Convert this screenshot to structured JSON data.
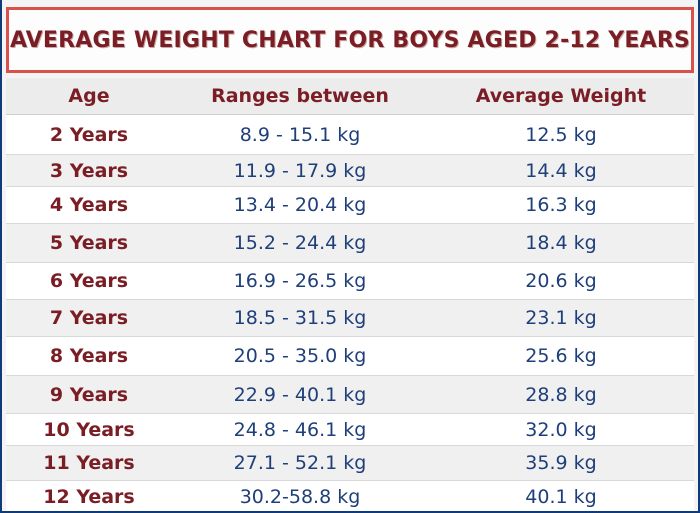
{
  "title": "AVERAGE WEIGHT CHART FOR BOYS AGED 2-12 YEARS",
  "table": {
    "headers": {
      "age": "Age",
      "range": "Ranges between",
      "average": "Average Weight"
    },
    "rows": [
      {
        "age": "2 Years",
        "range": "8.9 - 15.1 kg",
        "average": "12.5 kg"
      },
      {
        "age": "3 Years",
        "range": "11.9 - 17.9 kg",
        "average": "14.4 kg"
      },
      {
        "age": "4 Years",
        "range": "13.4 - 20.4 kg",
        "average": "16.3 kg"
      },
      {
        "age": "5 Years",
        "range": "15.2 - 24.4 kg",
        "average": "18.4 kg"
      },
      {
        "age": "6 Years",
        "range": "16.9 - 26.5 kg",
        "average": "20.6 kg"
      },
      {
        "age": "7 Years",
        "range": "18.5 - 31.5 kg",
        "average": "23.1 kg"
      },
      {
        "age": "8 Years",
        "range": "20.5 - 35.0 kg",
        "average": "25.6 kg"
      },
      {
        "age": "9 Years",
        "range": "22.9 - 40.1 kg",
        "average": "28.8 kg"
      },
      {
        "age": "10 Years",
        "range": "24.8 - 46.1 kg",
        "average": "32.0 kg"
      },
      {
        "age": "11 Years",
        "range": "27.1 - 52.1 kg",
        "average": "35.9 kg"
      },
      {
        "age": "12 Years",
        "range": "30.2-58.8 kg",
        "average": "40.1 kg"
      }
    ]
  },
  "colors": {
    "title_text": "#7a1d24",
    "title_border": "#d8514a",
    "value_text": "#1f3f7a",
    "frame": "#0f3c78"
  }
}
